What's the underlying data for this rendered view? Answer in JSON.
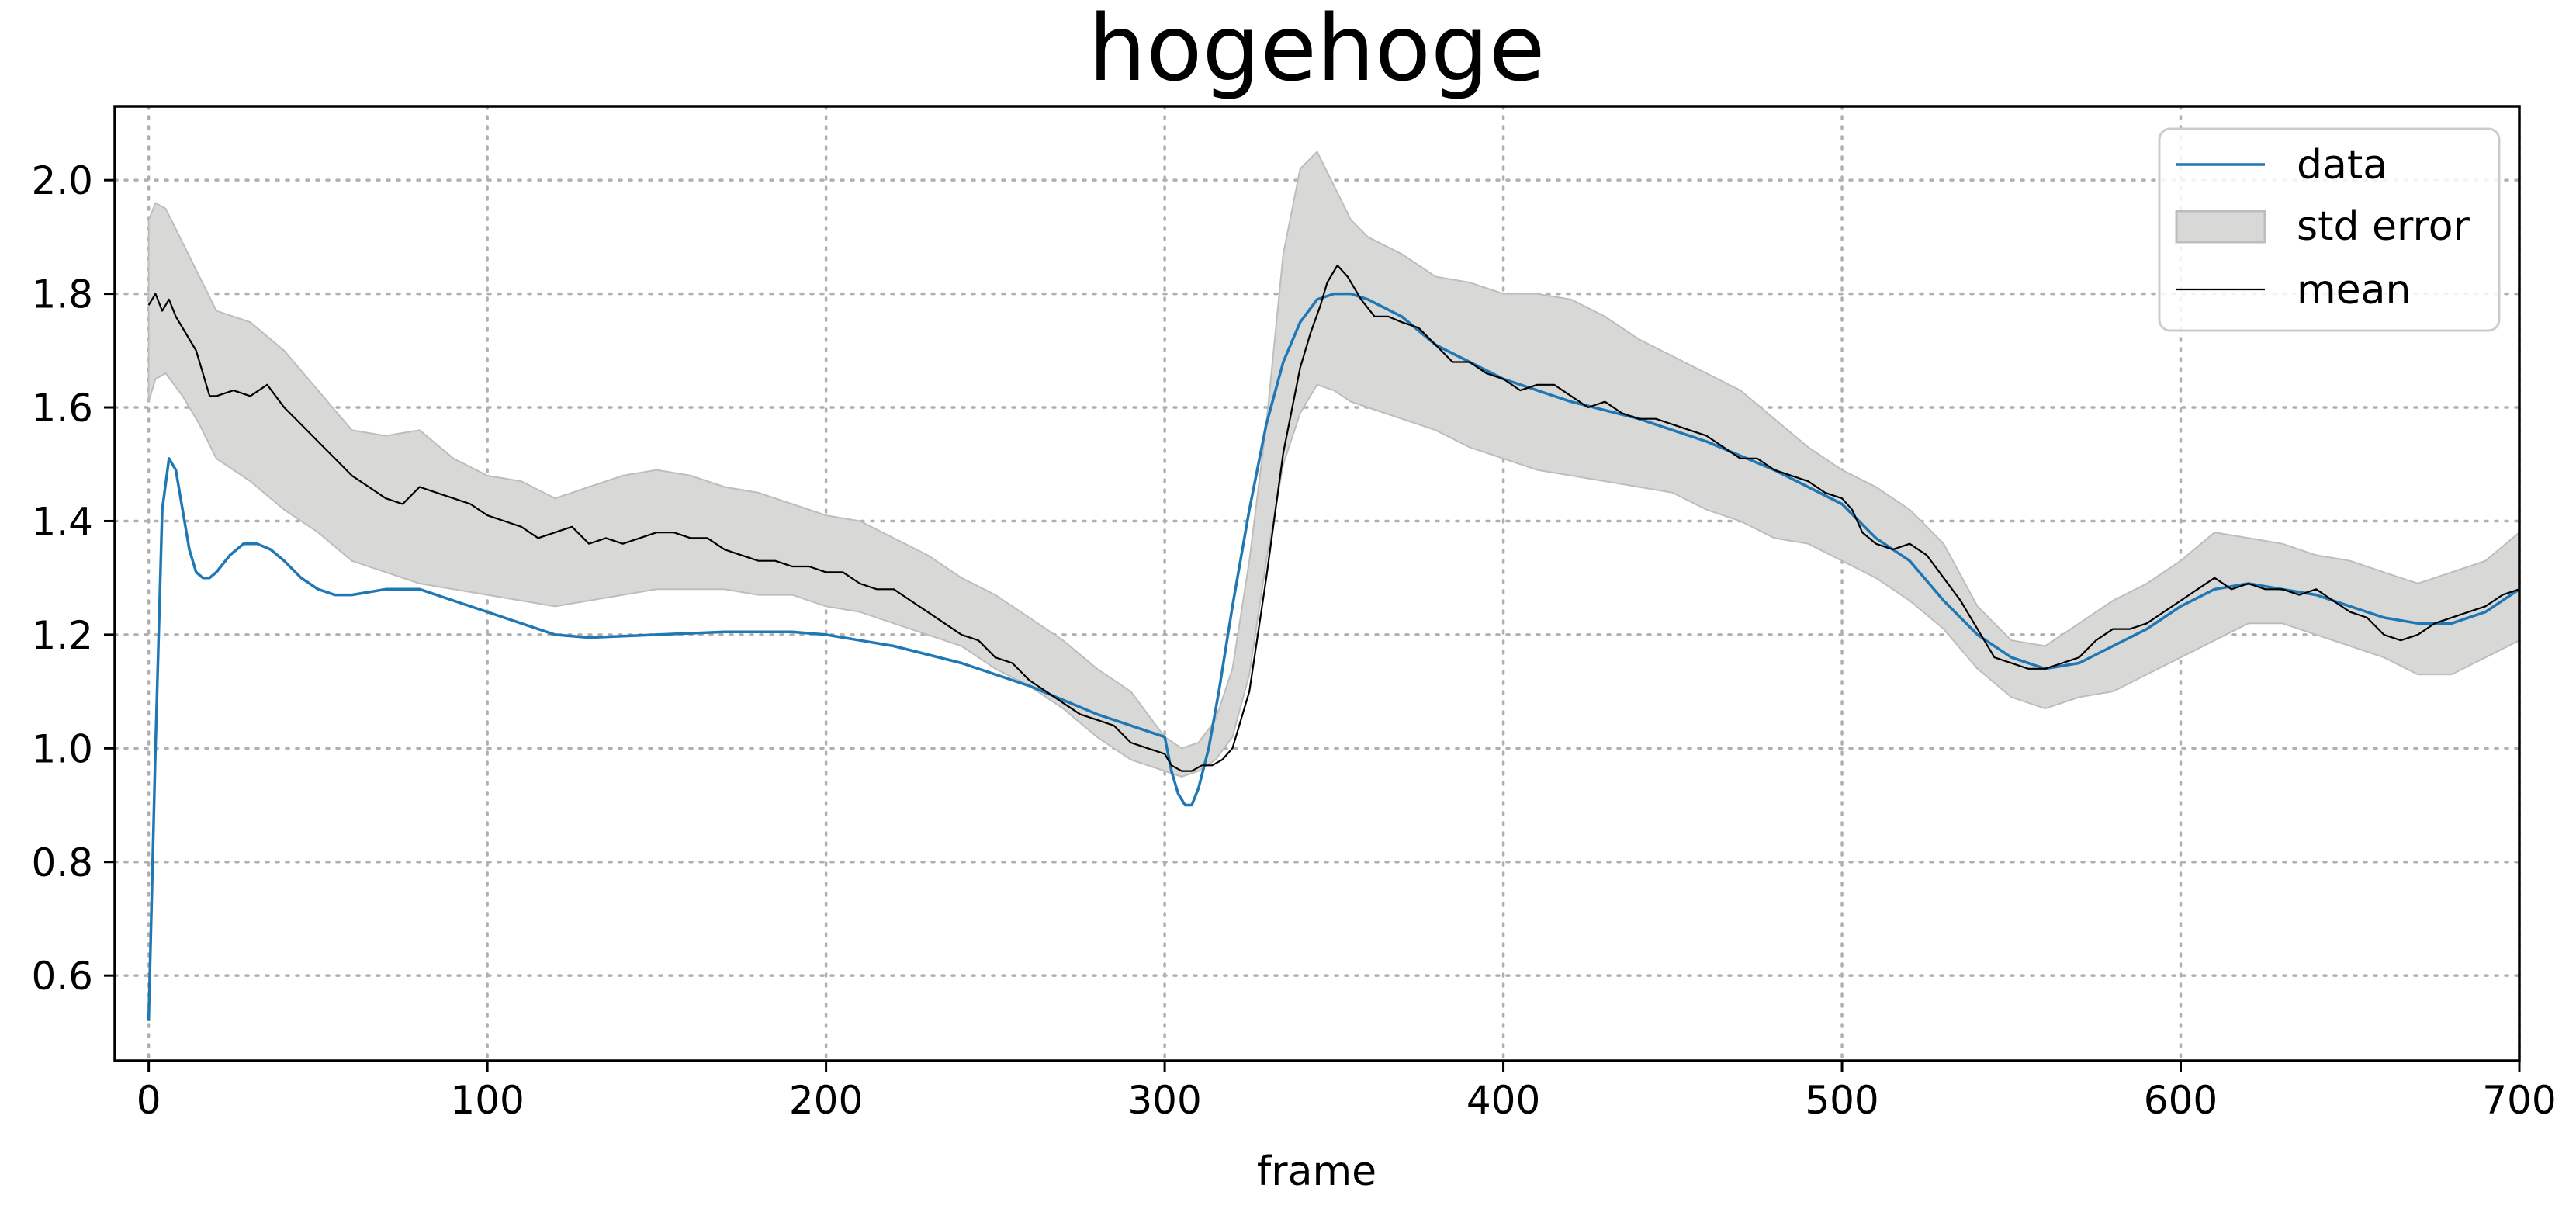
{
  "chart_data": {
    "type": "line",
    "title": "hogehoge",
    "xlabel": "frame",
    "ylabel": "",
    "xlim": [
      -10,
      700
    ],
    "ylim": [
      0.45,
      2.13
    ],
    "grid": true,
    "legend_position": "top-right",
    "x_ticks": [
      0,
      100,
      200,
      300,
      400,
      500,
      600,
      700
    ],
    "x_tick_labels": [
      "0",
      "100",
      "200",
      "300",
      "400",
      "500",
      "600",
      "700"
    ],
    "y_ticks": [
      0.6,
      0.8,
      1.0,
      1.2,
      1.4,
      1.6,
      1.8,
      2.0
    ],
    "y_tick_labels": [
      "0.6",
      "0.8",
      "1.0",
      "1.2",
      "1.4",
      "1.6",
      "1.8",
      "2.0"
    ],
    "legend": [
      {
        "key": "data",
        "label": "data"
      },
      {
        "key": "std",
        "label": "std error"
      },
      {
        "key": "mean",
        "label": "mean"
      }
    ],
    "colors": {
      "data": "#1f77b4",
      "mean": "#000000",
      "band_fill": "#d8d8d6",
      "band_edge": "#bdbdbd"
    },
    "series": [
      {
        "name": "data",
        "x": [
          0,
          2,
          4,
          6,
          8,
          10,
          12,
          14,
          16,
          18,
          20,
          24,
          28,
          32,
          36,
          40,
          45,
          50,
          55,
          60,
          70,
          80,
          90,
          100,
          110,
          120,
          130,
          150,
          170,
          190,
          200,
          210,
          220,
          240,
          260,
          280,
          300,
          302,
          304,
          306,
          308,
          310,
          313,
          316,
          320,
          325,
          330,
          335,
          340,
          345,
          350,
          355,
          360,
          370,
          380,
          400,
          420,
          440,
          460,
          480,
          500,
          505,
          510,
          520,
          530,
          540,
          550,
          560,
          570,
          580,
          590,
          600,
          610,
          620,
          630,
          640,
          650,
          660,
          670,
          680,
          690,
          700
        ],
        "y": [
          0.52,
          1.0,
          1.42,
          1.51,
          1.49,
          1.42,
          1.35,
          1.31,
          1.3,
          1.3,
          1.31,
          1.34,
          1.36,
          1.36,
          1.35,
          1.33,
          1.3,
          1.28,
          1.27,
          1.27,
          1.28,
          1.28,
          1.26,
          1.24,
          1.22,
          1.2,
          1.195,
          1.2,
          1.205,
          1.205,
          1.2,
          1.19,
          1.18,
          1.15,
          1.11,
          1.06,
          1.02,
          0.96,
          0.92,
          0.9,
          0.9,
          0.93,
          1.0,
          1.1,
          1.25,
          1.42,
          1.57,
          1.68,
          1.75,
          1.79,
          1.8,
          1.8,
          1.79,
          1.76,
          1.71,
          1.65,
          1.61,
          1.58,
          1.54,
          1.49,
          1.43,
          1.4,
          1.37,
          1.33,
          1.26,
          1.2,
          1.16,
          1.14,
          1.15,
          1.18,
          1.21,
          1.25,
          1.28,
          1.29,
          1.28,
          1.27,
          1.25,
          1.23,
          1.22,
          1.22,
          1.24,
          1.28
        ]
      },
      {
        "name": "mean",
        "x": [
          0,
          2,
          4,
          6,
          8,
          10,
          14,
          16,
          18,
          20,
          25,
          30,
          35,
          40,
          45,
          50,
          55,
          60,
          65,
          70,
          75,
          80,
          85,
          90,
          95,
          100,
          105,
          110,
          115,
          120,
          125,
          130,
          135,
          140,
          145,
          150,
          155,
          160,
          165,
          170,
          175,
          180,
          185,
          190,
          195,
          200,
          205,
          210,
          215,
          220,
          225,
          230,
          235,
          240,
          245,
          250,
          255,
          260,
          265,
          270,
          275,
          280,
          285,
          290,
          295,
          300,
          302,
          305,
          308,
          311,
          314,
          317,
          320,
          325,
          330,
          335,
          340,
          343,
          346,
          348,
          351,
          354,
          358,
          362,
          366,
          370,
          375,
          380,
          385,
          390,
          395,
          400,
          405,
          410,
          415,
          420,
          425,
          430,
          435,
          440,
          445,
          450,
          455,
          460,
          465,
          470,
          475,
          480,
          485,
          490,
          495,
          500,
          503,
          506,
          510,
          515,
          520,
          525,
          530,
          535,
          540,
          545,
          550,
          555,
          560,
          565,
          570,
          575,
          580,
          585,
          590,
          595,
          600,
          605,
          610,
          615,
          620,
          625,
          630,
          635,
          640,
          645,
          650,
          655,
          660,
          665,
          670,
          675,
          680,
          685,
          690,
          695,
          700
        ],
        "y": [
          1.78,
          1.8,
          1.77,
          1.79,
          1.76,
          1.74,
          1.7,
          1.66,
          1.62,
          1.62,
          1.63,
          1.62,
          1.64,
          1.6,
          1.57,
          1.54,
          1.51,
          1.48,
          1.46,
          1.44,
          1.43,
          1.46,
          1.45,
          1.44,
          1.43,
          1.41,
          1.4,
          1.39,
          1.37,
          1.38,
          1.39,
          1.36,
          1.37,
          1.36,
          1.37,
          1.38,
          1.38,
          1.37,
          1.37,
          1.35,
          1.34,
          1.33,
          1.33,
          1.32,
          1.32,
          1.31,
          1.31,
          1.29,
          1.28,
          1.28,
          1.26,
          1.24,
          1.22,
          1.2,
          1.19,
          1.16,
          1.15,
          1.12,
          1.1,
          1.08,
          1.06,
          1.05,
          1.04,
          1.01,
          1.0,
          0.99,
          0.97,
          0.96,
          0.96,
          0.97,
          0.97,
          0.98,
          1.0,
          1.1,
          1.3,
          1.52,
          1.67,
          1.73,
          1.78,
          1.82,
          1.85,
          1.83,
          1.79,
          1.76,
          1.76,
          1.75,
          1.74,
          1.71,
          1.68,
          1.68,
          1.66,
          1.65,
          1.63,
          1.64,
          1.64,
          1.62,
          1.6,
          1.61,
          1.59,
          1.58,
          1.58,
          1.57,
          1.56,
          1.55,
          1.53,
          1.51,
          1.51,
          1.49,
          1.48,
          1.47,
          1.45,
          1.44,
          1.42,
          1.38,
          1.36,
          1.35,
          1.36,
          1.34,
          1.3,
          1.26,
          1.21,
          1.16,
          1.15,
          1.14,
          1.14,
          1.15,
          1.16,
          1.19,
          1.21,
          1.21,
          1.22,
          1.24,
          1.26,
          1.28,
          1.3,
          1.28,
          1.29,
          1.28,
          1.28,
          1.27,
          1.28,
          1.26,
          1.24,
          1.23,
          1.2,
          1.19,
          1.2,
          1.22,
          1.23,
          1.24,
          1.25,
          1.27,
          1.28
        ]
      },
      {
        "name": "std error",
        "x": [
          0,
          2,
          5,
          10,
          15,
          20,
          30,
          40,
          50,
          60,
          70,
          80,
          90,
          100,
          110,
          120,
          130,
          140,
          150,
          160,
          170,
          180,
          190,
          200,
          210,
          220,
          230,
          240,
          250,
          260,
          270,
          280,
          290,
          300,
          305,
          310,
          315,
          320,
          325,
          330,
          335,
          340,
          345,
          350,
          355,
          360,
          370,
          380,
          390,
          400,
          410,
          420,
          430,
          440,
          450,
          460,
          470,
          480,
          490,
          500,
          510,
          520,
          530,
          540,
          550,
          560,
          570,
          580,
          590,
          600,
          610,
          620,
          630,
          640,
          650,
          660,
          670,
          680,
          690,
          700
        ],
        "lower": [
          1.61,
          1.65,
          1.66,
          1.62,
          1.57,
          1.51,
          1.47,
          1.42,
          1.38,
          1.33,
          1.31,
          1.29,
          1.28,
          1.27,
          1.26,
          1.25,
          1.26,
          1.27,
          1.28,
          1.28,
          1.28,
          1.27,
          1.27,
          1.25,
          1.24,
          1.22,
          1.2,
          1.18,
          1.14,
          1.11,
          1.07,
          1.02,
          0.98,
          0.96,
          0.95,
          0.96,
          0.98,
          1.02,
          1.13,
          1.33,
          1.5,
          1.59,
          1.64,
          1.63,
          1.61,
          1.6,
          1.58,
          1.56,
          1.53,
          1.51,
          1.49,
          1.48,
          1.47,
          1.46,
          1.45,
          1.42,
          1.4,
          1.37,
          1.36,
          1.33,
          1.3,
          1.26,
          1.21,
          1.14,
          1.09,
          1.07,
          1.09,
          1.1,
          1.13,
          1.16,
          1.19,
          1.22,
          1.22,
          1.2,
          1.18,
          1.16,
          1.13,
          1.13,
          1.16,
          1.19
        ],
        "upper": [
          1.93,
          1.96,
          1.95,
          1.89,
          1.83,
          1.77,
          1.75,
          1.7,
          1.63,
          1.56,
          1.55,
          1.56,
          1.51,
          1.48,
          1.47,
          1.44,
          1.46,
          1.48,
          1.49,
          1.48,
          1.46,
          1.45,
          1.43,
          1.41,
          1.4,
          1.37,
          1.34,
          1.3,
          1.27,
          1.23,
          1.19,
          1.14,
          1.1,
          1.02,
          1.0,
          1.01,
          1.05,
          1.14,
          1.33,
          1.57,
          1.87,
          2.02,
          2.05,
          1.99,
          1.93,
          1.9,
          1.87,
          1.83,
          1.82,
          1.8,
          1.8,
          1.79,
          1.76,
          1.72,
          1.69,
          1.66,
          1.63,
          1.58,
          1.53,
          1.49,
          1.46,
          1.42,
          1.36,
          1.25,
          1.19,
          1.18,
          1.22,
          1.26,
          1.29,
          1.33,
          1.38,
          1.37,
          1.36,
          1.34,
          1.33,
          1.31,
          1.29,
          1.31,
          1.33,
          1.38
        ]
      }
    ]
  }
}
